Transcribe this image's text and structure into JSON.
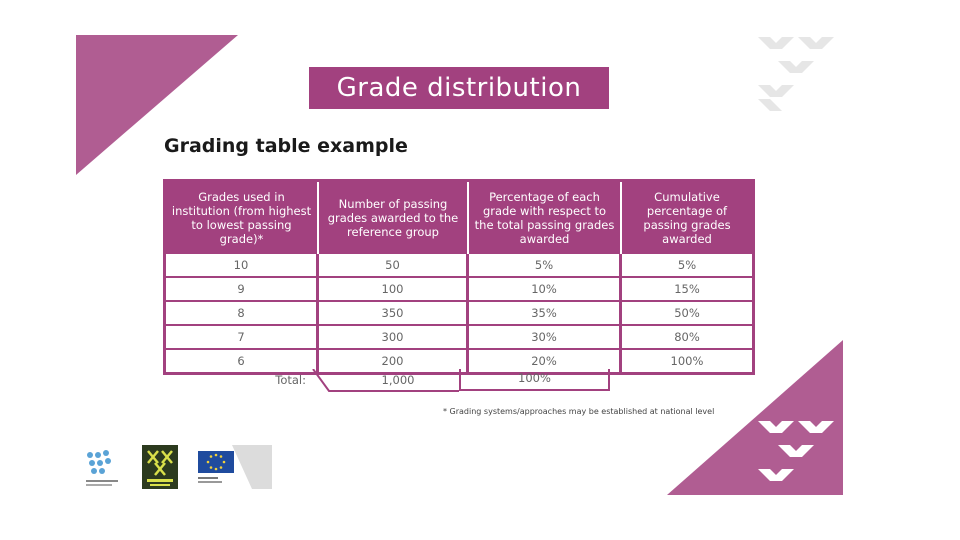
{
  "title": "Grade distribution",
  "subtitle": "Grading table example",
  "colors": {
    "accent": "#a2417f",
    "header_text": "#ffffff",
    "cell_text": "#666666"
  },
  "table": {
    "headers": [
      "Grades used in institution (from highest to lowest passing grade)*",
      "Number of passing grades awarded to the reference group",
      "Percentage of each grade with respect to the total passing grades awarded",
      "Cumulative percentage of passing grades awarded"
    ],
    "rows": [
      [
        "10",
        "50",
        "5%",
        "5%"
      ],
      [
        "9",
        "100",
        "10%",
        "15%"
      ],
      [
        "8",
        "350",
        "35%",
        "50%"
      ],
      [
        "7",
        "300",
        "30%",
        "80%"
      ],
      [
        "6",
        "200",
        "20%",
        "100%"
      ]
    ],
    "total": {
      "label": "Total:",
      "count": "1,000",
      "percent": "100%"
    }
  },
  "footnote": "* Grading systems/approaches may be established at national level",
  "icons": [
    "plus-icon",
    "x-pattern-decoration",
    "ehea-logo",
    "bologna-process-logo",
    "european-commission-logo"
  ]
}
